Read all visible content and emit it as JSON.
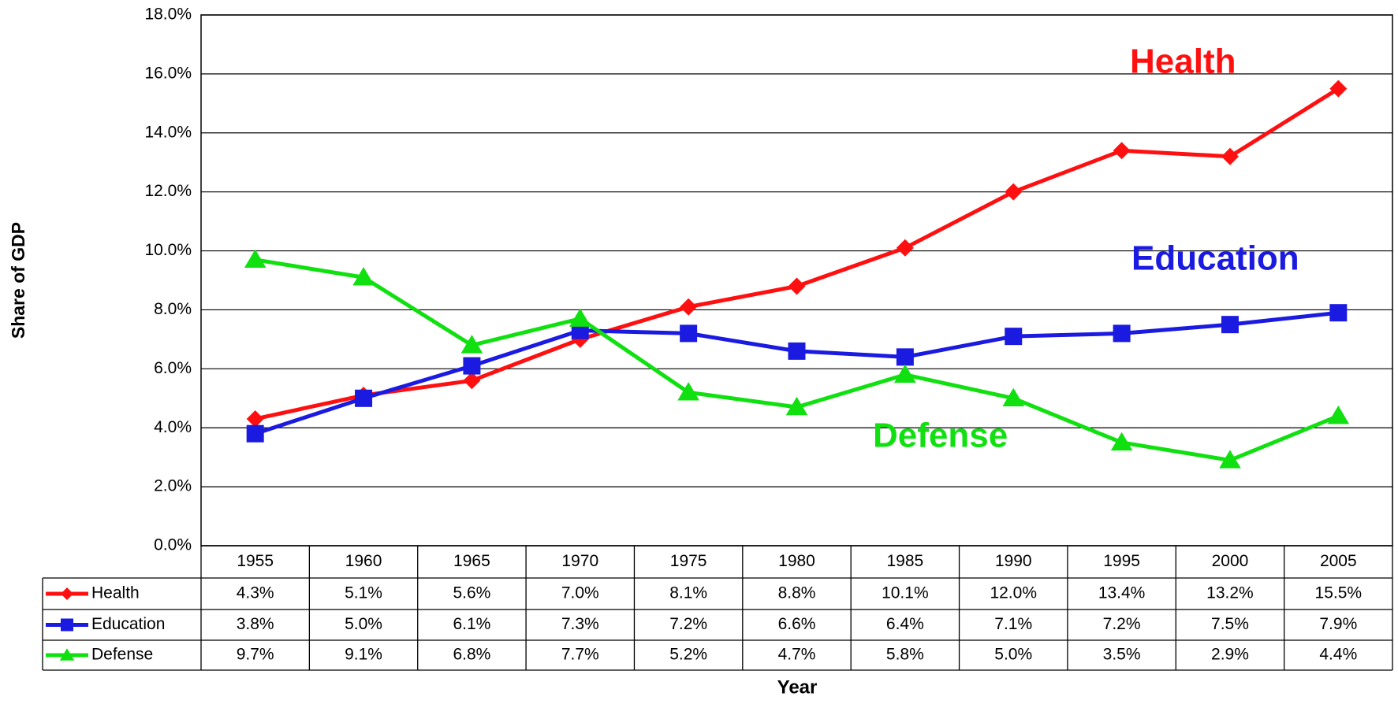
{
  "chart_data": {
    "type": "line",
    "y_label": "Share of GDP",
    "x_label": "Year",
    "categories": [
      "1955",
      "1960",
      "1965",
      "1970",
      "1975",
      "1980",
      "1985",
      "1990",
      "1995",
      "2000",
      "2005"
    ],
    "series": [
      {
        "name": "Health",
        "color": "#ff1010",
        "marker": "diamond",
        "values": [
          4.3,
          5.1,
          5.6,
          7.0,
          8.1,
          8.8,
          10.1,
          12.0,
          13.4,
          13.2,
          15.5
        ],
        "value_labels": [
          "4.3%",
          "5.1%",
          "5.6%",
          "7.0%",
          "8.1%",
          "8.8%",
          "10.1%",
          "12.0%",
          "13.4%",
          "13.2%",
          "15.5%"
        ]
      },
      {
        "name": "Education",
        "color": "#1a1ae0",
        "marker": "square",
        "values": [
          3.8,
          5.0,
          6.1,
          7.3,
          7.2,
          6.6,
          6.4,
          7.1,
          7.2,
          7.5,
          7.9
        ],
        "value_labels": [
          "3.8%",
          "5.0%",
          "6.1%",
          "7.3%",
          "7.2%",
          "6.6%",
          "6.4%",
          "7.1%",
          "7.2%",
          "7.5%",
          "7.9%"
        ]
      },
      {
        "name": "Defense",
        "color": "#10e010",
        "marker": "triangle",
        "values": [
          9.7,
          9.1,
          6.8,
          7.7,
          5.2,
          4.7,
          5.8,
          5.0,
          3.5,
          2.9,
          4.4
        ],
        "value_labels": [
          "9.7%",
          "9.1%",
          "6.8%",
          "7.7%",
          "5.2%",
          "4.7%",
          "5.8%",
          "5.0%",
          "3.5%",
          "2.9%",
          "4.4%"
        ]
      }
    ],
    "annotations": [
      "Health",
      "Education",
      "Defense"
    ],
    "ylim": [
      0,
      18
    ],
    "yticks": [
      {
        "value": 0,
        "label": "0.0%"
      },
      {
        "value": 2,
        "label": "2.0%"
      },
      {
        "value": 4,
        "label": "4.0%"
      },
      {
        "value": 6,
        "label": "6.0%"
      },
      {
        "value": 8,
        "label": "8.0%"
      },
      {
        "value": 10,
        "label": "10.0%"
      },
      {
        "value": 12,
        "label": "12.0%"
      },
      {
        "value": 14,
        "label": "14.0%"
      },
      {
        "value": 16,
        "label": "16.0%"
      },
      {
        "value": 18,
        "label": "18.0%"
      }
    ],
    "grid": true
  }
}
